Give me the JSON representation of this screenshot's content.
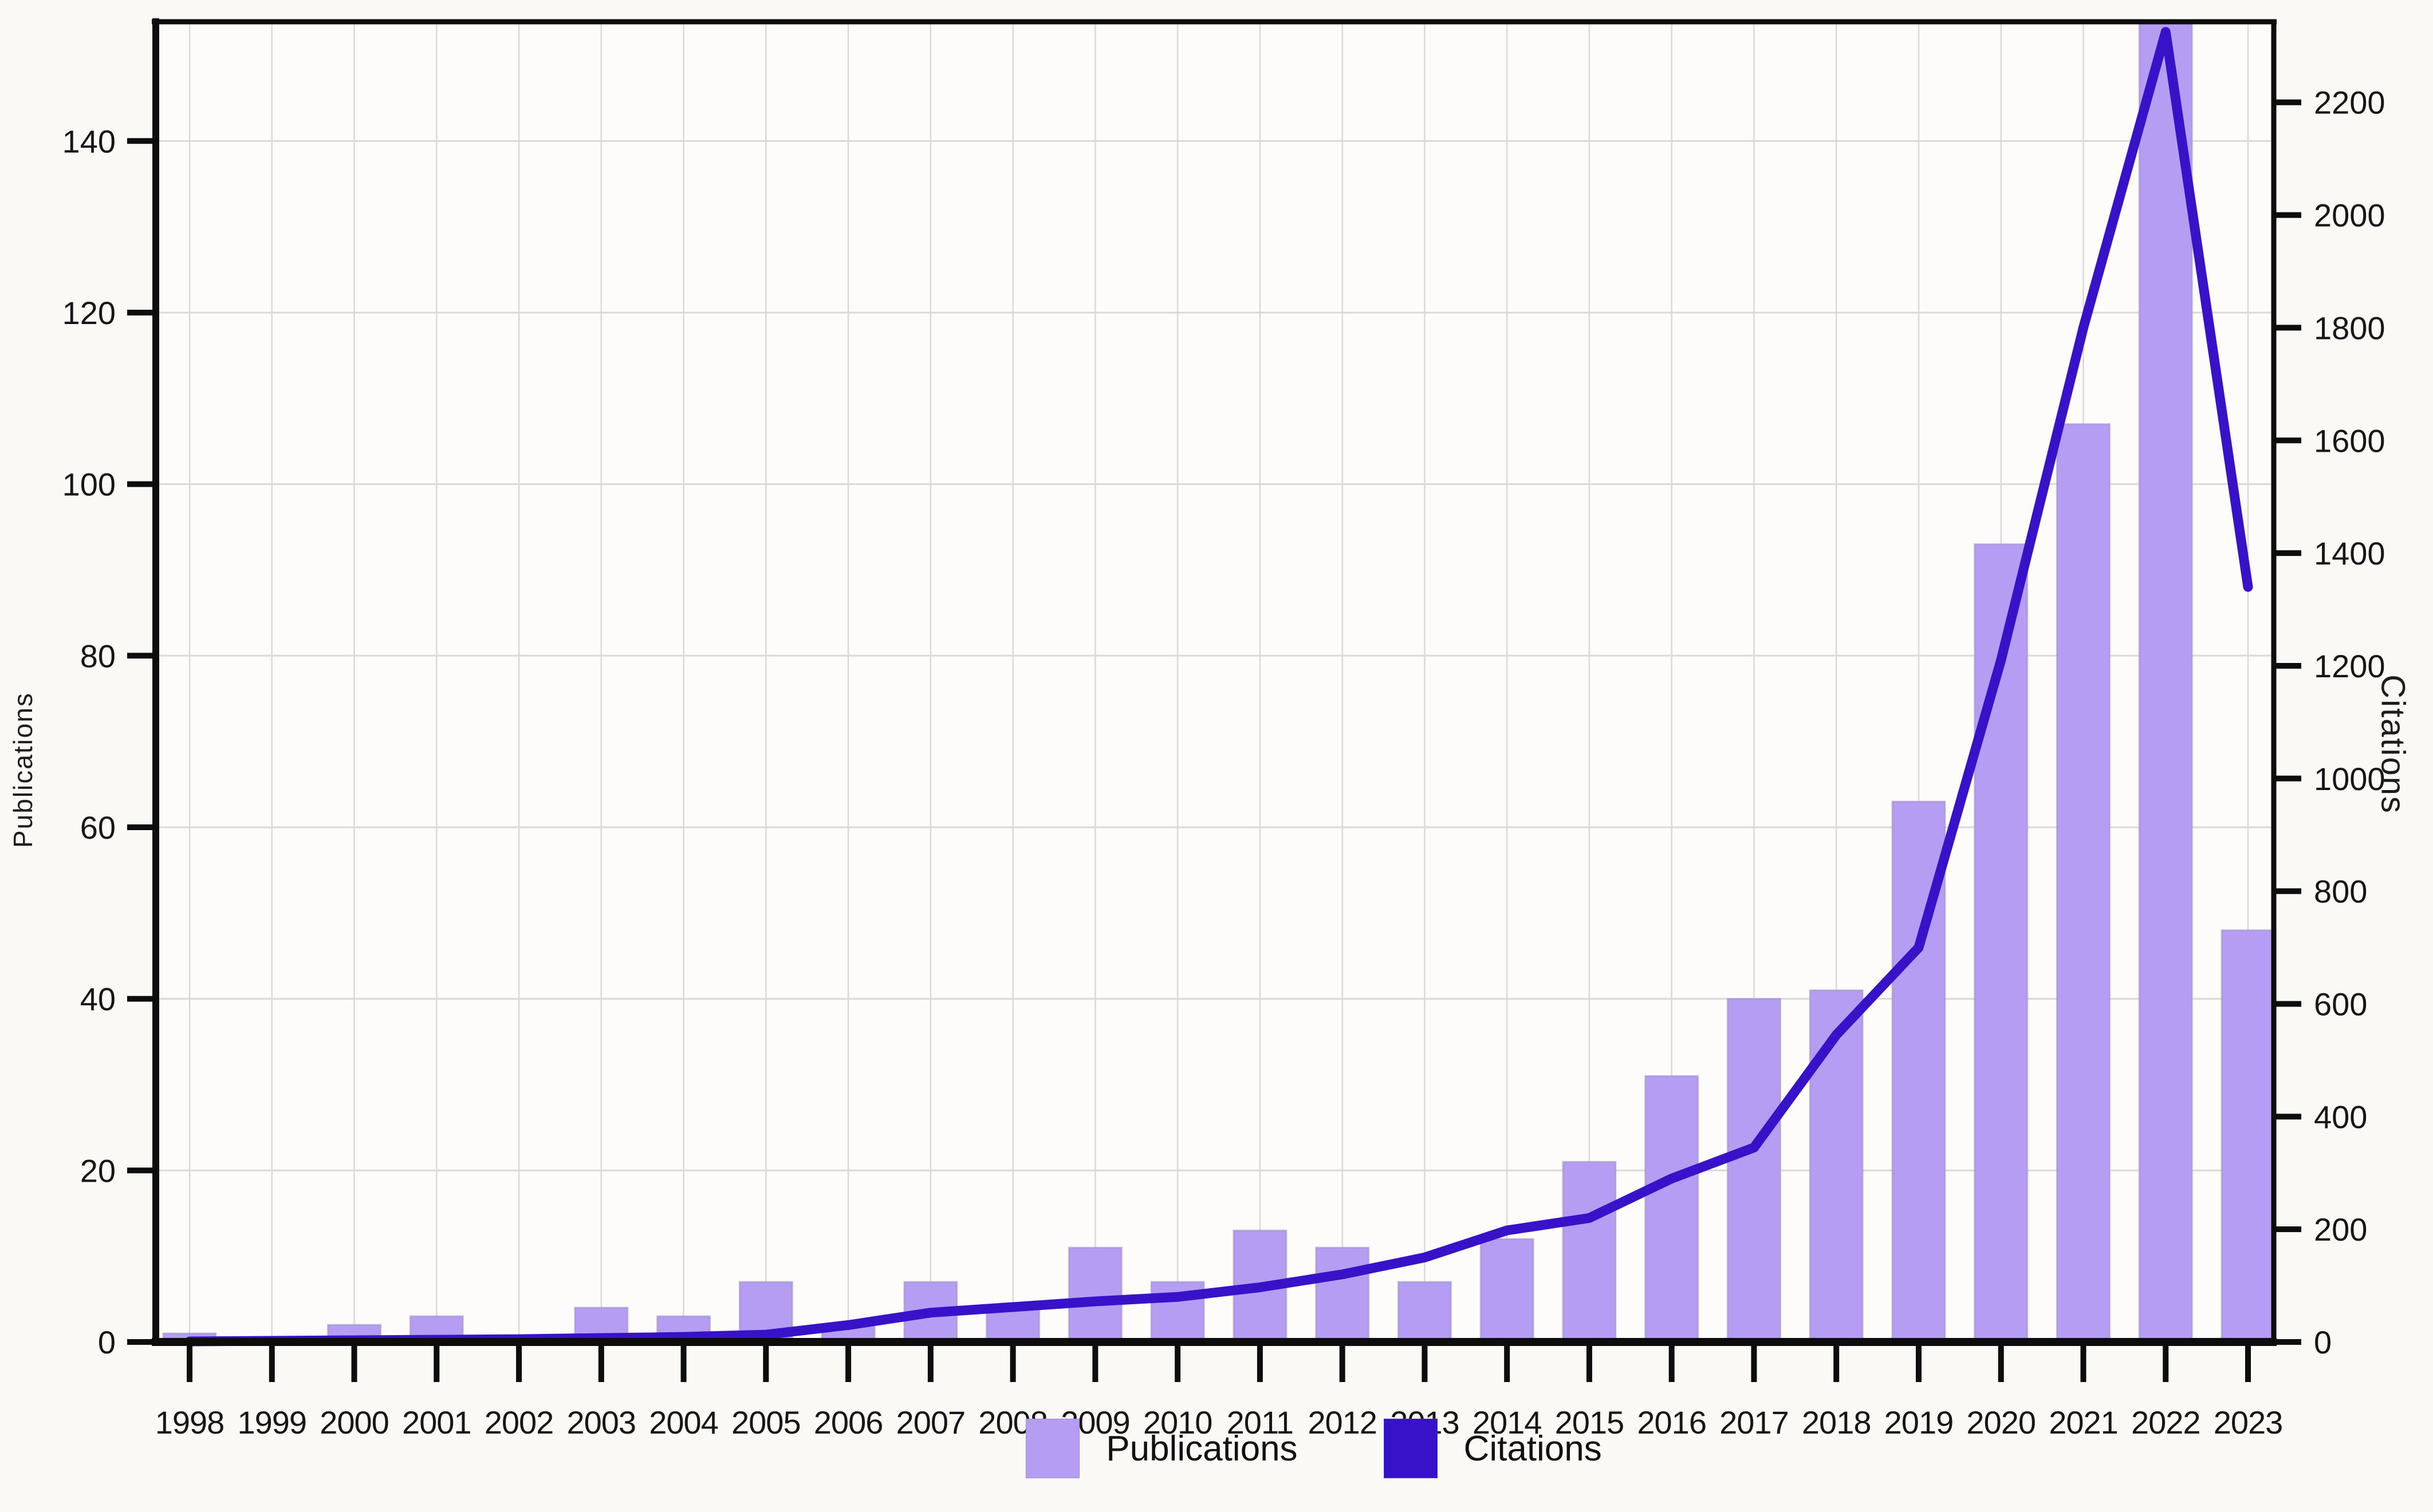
{
  "page": {
    "background": "#fbf9f6"
  },
  "chart_data": {
    "type": "combo",
    "title": "",
    "categories": [
      "1998",
      "1999",
      "2000",
      "2001",
      "2002",
      "2003",
      "2004",
      "2005",
      "2006",
      "2007",
      "2008",
      "2009",
      "2010",
      "2011",
      "2012",
      "2013",
      "2014",
      "2015",
      "2016",
      "2017",
      "2018",
      "2019",
      "2020",
      "2021",
      "2022",
      "2023"
    ],
    "series": [
      {
        "name": "Publications",
        "type": "bar",
        "axis": "left",
        "color": "#b49df2",
        "edge_color": "#9b8fc4",
        "values": [
          1,
          0,
          2,
          3,
          0,
          4,
          3,
          7,
          2,
          7,
          4,
          11,
          7,
          13,
          11,
          7,
          12,
          21,
          31,
          40,
          41,
          63,
          93,
          107,
          157,
          48
        ]
      },
      {
        "name": "Citations",
        "type": "line",
        "axis": "right",
        "color": "#3712c8",
        "values": [
          1,
          2,
          3,
          4,
          5,
          7,
          9,
          13,
          30,
          52,
          62,
          72,
          80,
          97,
          120,
          150,
          198,
          220,
          290,
          345,
          545,
          700,
          1210,
          1800,
          2325,
          1340
        ]
      }
    ],
    "left_axis": {
      "label": "Publications",
      "ticks": [
        0,
        20,
        40,
        60,
        80,
        100,
        120,
        140
      ],
      "range": [
        0,
        153.9
      ]
    },
    "right_axis": {
      "label": "Citations",
      "ticks": [
        0,
        200,
        400,
        600,
        800,
        1000,
        1200,
        1400,
        1600,
        1800,
        2000,
        2200
      ],
      "range": [
        0,
        2343
      ]
    },
    "x_axis": {
      "tick_labels": [
        "1998",
        "1999",
        "2000",
        "2001",
        "2002",
        "2003",
        "2004",
        "2005",
        "2006",
        "2007",
        "2008",
        "2009",
        "2010",
        "2011",
        "2012",
        "2013",
        "2014",
        "2015",
        "2016",
        "2017",
        "2018",
        "2019",
        "2020",
        "2021",
        "2022",
        "2023"
      ]
    },
    "legend": {
      "position": "bottom",
      "items": [
        {
          "label": "Publications",
          "color": "#b49df2"
        },
        {
          "label": "Citations",
          "color": "#3712c8"
        }
      ]
    },
    "grid": {
      "vertical": "per-year",
      "horizontal": "per-20-left-units",
      "color": "#d9d9d9"
    },
    "notes": {
      "bar_2022_clipped_at_top": true
    },
    "style": {
      "spine_color": "#0d0d0d",
      "tick_label_color": "#161616",
      "plot_background": "#fdfcfa"
    }
  }
}
